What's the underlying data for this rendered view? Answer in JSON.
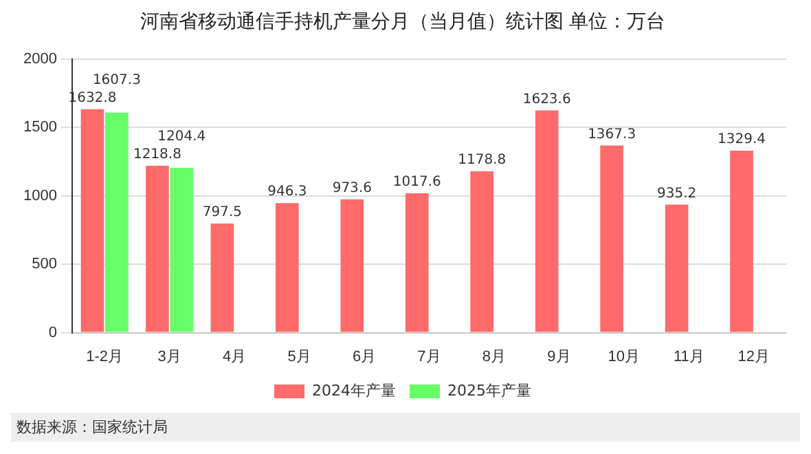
{
  "chart_data": {
    "type": "bar",
    "title": "河南省移动通信手持机产量分月（当月值）统计图 单位：万台",
    "categories": [
      "1-2月",
      "3月",
      "4月",
      "5月",
      "6月",
      "7月",
      "8月",
      "9月",
      "10月",
      "11月",
      "12月"
    ],
    "series": [
      {
        "name": "2024年产量",
        "color": "#ff6b6b",
        "values": [
          1632.8,
          1218.8,
          797.5,
          946.3,
          973.6,
          1017.6,
          1178.8,
          1623.6,
          1367.3,
          935.2,
          1329.4
        ]
      },
      {
        "name": "2025年产量",
        "color": "#66ff66",
        "values": [
          1607.3,
          1204.4,
          null,
          null,
          null,
          null,
          null,
          null,
          null,
          null,
          null
        ]
      }
    ],
    "ylim": [
      0,
      2000
    ],
    "yticks": [
      0,
      500,
      1000,
      1500,
      2000
    ],
    "grid": "y",
    "legend": "bottom",
    "data_labels": true,
    "annotations": [
      "数据来源：国家统计局"
    ]
  }
}
